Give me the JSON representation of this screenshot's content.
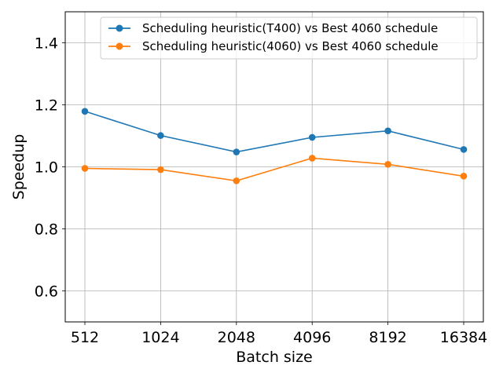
{
  "chart_data": {
    "type": "line",
    "xlabel": "Batch size",
    "ylabel": "Speedup",
    "categories": [
      "512",
      "1024",
      "2048",
      "4096",
      "8192",
      "16384"
    ],
    "ylim": [
      0.5,
      1.5
    ],
    "yticks": [
      0.6,
      0.8,
      1.0,
      1.2,
      1.4
    ],
    "ytick_labels": [
      "0.6",
      "0.8",
      "1.0",
      "1.2",
      "1.4"
    ],
    "grid": true,
    "legend_position": "top-right",
    "series": [
      {
        "name": "Scheduling heuristic(T400) vs Best 4060 schedule",
        "color": "#1f77b4",
        "marker": "circle",
        "values": [
          1.179,
          1.101,
          1.048,
          1.095,
          1.116,
          1.056
        ]
      },
      {
        "name": "Scheduling heuristic(4060) vs Best 4060 schedule",
        "color": "#ff7f0e",
        "marker": "circle",
        "values": [
          0.995,
          0.991,
          0.955,
          1.028,
          1.008,
          0.97
        ]
      }
    ]
  }
}
